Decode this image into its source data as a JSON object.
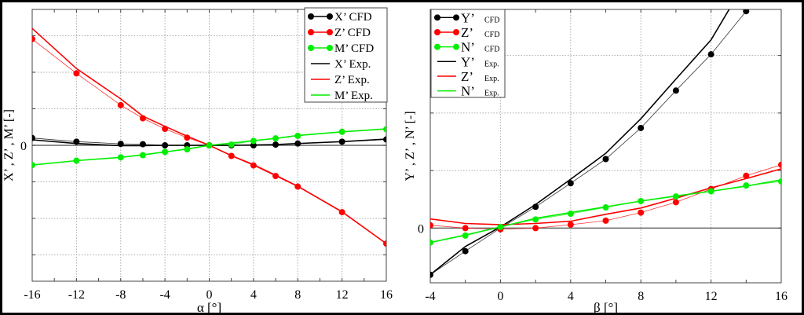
{
  "chart_data": [
    {
      "type": "line",
      "xlabel": "α [°]",
      "ylabel": "X’ , Z’ , M’ [-]",
      "xlim": [
        -16,
        16
      ],
      "ylim": [
        -3.72,
        3.72
      ],
      "xticks": [
        -16,
        -12,
        -8,
        -4,
        0,
        4,
        8,
        12,
        16
      ],
      "yticks": [
        0
      ],
      "ytick_labels": [
        "0"
      ],
      "ygrid": [
        -3,
        -2,
        -1,
        1,
        2,
        3
      ],
      "grid": true,
      "legend_placement": "top-right",
      "series": [
        {
          "name": "X’ CFD",
          "color": "#000000",
          "markers": true,
          "x": [
            -16,
            -12,
            -8,
            -6,
            -4,
            -2,
            0,
            2,
            4,
            6,
            8,
            12,
            16
          ],
          "y": [
            0.2,
            0.1,
            0.04,
            0.03,
            0.0,
            0.0,
            0.0,
            0.0,
            0.0,
            0.02,
            0.05,
            0.1,
            0.16
          ]
        },
        {
          "name": "Z’ CFD",
          "color": "#ff0000",
          "markers": true,
          "x": [
            -16,
            -12,
            -8,
            -6,
            -4,
            -2,
            0,
            2,
            4,
            6,
            8,
            12,
            16
          ],
          "y": [
            2.91,
            1.97,
            1.1,
            0.74,
            0.45,
            0.21,
            0.0,
            -0.29,
            -0.55,
            -0.84,
            -1.13,
            -1.83,
            -2.69
          ]
        },
        {
          "name": "M’ CFD",
          "color": "#00ee00",
          "markers": true,
          "x": [
            -16,
            -12,
            -8,
            -6,
            -4,
            -2,
            0,
            2,
            4,
            6,
            8,
            12,
            16
          ],
          "y": [
            -0.54,
            -0.42,
            -0.33,
            -0.27,
            -0.18,
            -0.11,
            0.0,
            0.02,
            0.12,
            0.19,
            0.26,
            0.37,
            0.44
          ]
        },
        {
          "name": "X’  Exp.",
          "color": "#000000",
          "markers": false,
          "x": [
            -16,
            -12,
            -8,
            -6,
            -4,
            -2,
            0,
            2,
            4,
            6,
            8,
            12,
            16
          ],
          "y": [
            0.15,
            0.05,
            -0.01,
            -0.01,
            0.0,
            0.0,
            0.0,
            0.0,
            0.01,
            0.02,
            0.05,
            0.1,
            0.17
          ]
        },
        {
          "name": "Z’  Exp.",
          "color": "#ff0000",
          "markers": false,
          "x": [
            -16,
            -12,
            -8,
            -6,
            -4,
            -2,
            0,
            2,
            4,
            6,
            8,
            12,
            16
          ],
          "y": [
            3.2,
            2.1,
            1.27,
            0.8,
            0.52,
            0.25,
            0.0,
            -0.28,
            -0.53,
            -0.82,
            -1.12,
            -1.82,
            -2.69
          ]
        },
        {
          "name": "M’ Exp.",
          "color": "#00ee00",
          "markers": false,
          "x": [
            -16,
            -12,
            -8,
            -6,
            -4,
            -2,
            0,
            2,
            4,
            6,
            8,
            12,
            16
          ],
          "y": [
            -0.54,
            -0.42,
            -0.33,
            -0.26,
            -0.18,
            -0.1,
            0.0,
            0.06,
            0.13,
            0.19,
            0.27,
            0.37,
            0.45
          ]
        }
      ]
    },
    {
      "type": "line",
      "xlabel": "β [°]",
      "ylabel": "Y’ , Z’ , N’ [-]",
      "xlim": [
        -4,
        16
      ],
      "ylim": [
        -0.95,
        3.8
      ],
      "xticks": [
        -4,
        0,
        4,
        8,
        12,
        16
      ],
      "yticks": [
        0
      ],
      "ytick_labels": [
        "0"
      ],
      "ygrid": [
        1,
        2,
        3
      ],
      "grid": true,
      "legend_placement": "top-left",
      "series": [
        {
          "name": "Y’",
          "tag": "CFD",
          "color": "#000000",
          "markers": true,
          "x": [
            -4,
            -2,
            0,
            2,
            4,
            6,
            8,
            10,
            12,
            14
          ],
          "y": [
            -0.81,
            -0.4,
            0.0,
            0.37,
            0.78,
            1.2,
            1.74,
            2.39,
            3.02,
            3.77
          ]
        },
        {
          "name": "Z’",
          "tag": "CFD",
          "color": "#ff0000",
          "markers": true,
          "x": [
            -4,
            -2,
            0,
            2,
            4,
            6,
            8,
            10,
            12,
            14,
            16
          ],
          "y": [
            0.05,
            0.0,
            -0.02,
            0.0,
            0.06,
            0.13,
            0.27,
            0.45,
            0.68,
            0.91,
            1.1
          ]
        },
        {
          "name": "N’",
          "tag": "CFD",
          "color": "#00ee00",
          "markers": true,
          "x": [
            -4,
            -2,
            0,
            2,
            4,
            6,
            8,
            10,
            12,
            14,
            16
          ],
          "y": [
            -0.25,
            -0.13,
            0.02,
            0.15,
            0.25,
            0.36,
            0.47,
            0.55,
            0.64,
            0.74,
            0.81
          ]
        },
        {
          "name": "Y’",
          "tag": "Exp.",
          "color": "#000000",
          "markers": false,
          "x": [
            -4,
            -2,
            0,
            2,
            4,
            6,
            8,
            10,
            12,
            14
          ],
          "y": [
            -0.81,
            -0.32,
            0.02,
            0.41,
            0.85,
            1.3,
            1.9,
            2.59,
            3.27,
            4.3
          ]
        },
        {
          "name": "Z’",
          "tag": "Exp.",
          "color": "#ff0000",
          "markers": false,
          "x": [
            -4,
            -2,
            0,
            2,
            4,
            6,
            8,
            10,
            12,
            14,
            16
          ],
          "y": [
            0.16,
            0.08,
            0.06,
            0.08,
            0.12,
            0.24,
            0.35,
            0.52,
            0.7,
            0.86,
            1.03
          ]
        },
        {
          "name": "N’",
          "tag": "Exp.",
          "color": "#00ee00",
          "markers": false,
          "x": [
            -4,
            -2,
            0,
            2,
            4,
            6,
            8,
            10,
            12,
            14,
            16
          ],
          "y": [
            -0.25,
            -0.12,
            0.02,
            0.17,
            0.27,
            0.37,
            0.47,
            0.56,
            0.64,
            0.73,
            0.84
          ]
        }
      ]
    }
  ]
}
